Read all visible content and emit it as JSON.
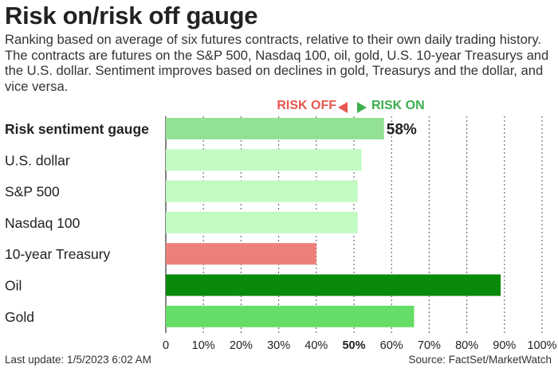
{
  "chart_data": {
    "type": "bar",
    "orientation": "horizontal",
    "title": "Risk on/risk off gauge",
    "subtitle": "Ranking based on average of six futures contracts, relative to their own daily trading history. The contracts are futures on the S&P 500, Nasdaq 100, oil, gold, U.S. 10-year Treasurys and the U.S. dollar. Sentiment improves based on declines in gold, Treasurys and the dollar, and vice versa.",
    "legend": {
      "off_label": "RISK OFF",
      "on_label": "RISK ON",
      "placement": "top-center"
    },
    "categories": [
      "Risk sentiment gauge",
      "U.S. dollar",
      "S&P 500",
      "Nasdaq 100",
      "10-year Treasury",
      "Oil",
      "Gold"
    ],
    "values": [
      58,
      52,
      51,
      51,
      40,
      89,
      66
    ],
    "colors": [
      "#93e293",
      "#c2fac2",
      "#c2fac2",
      "#c2fac2",
      "#ec8079",
      "#0a8a0a",
      "#66dd66"
    ],
    "bold_categories": [
      "Risk sentiment gauge"
    ],
    "value_labels": [
      {
        "category": "Risk sentiment gauge",
        "text": "58%"
      }
    ],
    "xlim": [
      0,
      100
    ],
    "xticks": [
      "0",
      "10%",
      "20%",
      "30%",
      "40%",
      "50%",
      "60%",
      "70%",
      "80%",
      "90%",
      "100%"
    ],
    "xtick_values": [
      0,
      10,
      20,
      30,
      40,
      50,
      60,
      70,
      80,
      90,
      100
    ],
    "highlight_tick": 50,
    "grid": "vertical-dotted"
  },
  "footer": {
    "last_update": "Last update: 1/5/2023 6:02 AM",
    "source": "Source: FactSet/MarketWatch"
  }
}
